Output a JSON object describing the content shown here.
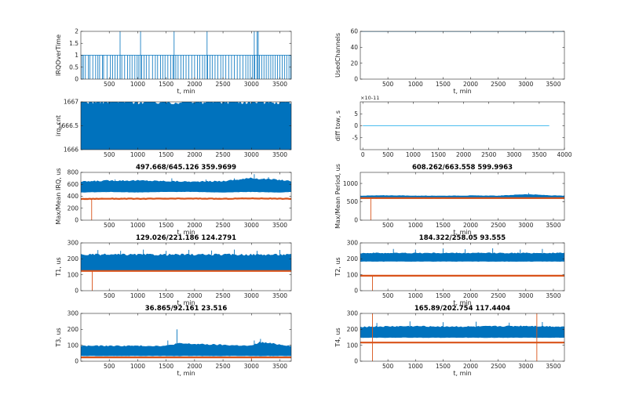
{
  "chart_data": [
    {
      "id": "irq-over-time",
      "type": "line",
      "title": "",
      "xlabel": "t, min",
      "ylabel": "IRQOverTime",
      "xlim": [
        0,
        3700
      ],
      "ylim": [
        0,
        2
      ],
      "xticks": [
        500,
        1000,
        1500,
        2000,
        2500,
        3000,
        3500
      ],
      "yticks": [
        0,
        0.5,
        1,
        1.5,
        2
      ],
      "yticklabels": [
        "0",
        "0.5",
        "1",
        "1.5",
        "2"
      ],
      "series": [
        {
          "name": "IRQOverTime",
          "color": "#0072bd",
          "render": "spikes",
          "base": 0,
          "level": 1,
          "high": 2,
          "spike_x": [
            20,
            45,
            80,
            130,
            160,
            210,
            260,
            300,
            330,
            380,
            400,
            460,
            520,
            560,
            600,
            640,
            690,
            720,
            770,
            820,
            860,
            900,
            950,
            990,
            1020,
            1070,
            1110,
            1150,
            1200,
            1260,
            1310,
            1350,
            1400,
            1440,
            1480,
            1530,
            1580,
            1620,
            1670,
            1710,
            1760,
            1800,
            1850,
            1900,
            1950,
            2000,
            2050,
            2090,
            2140,
            2180,
            2230,
            2270,
            2310,
            2360,
            2410,
            2460,
            2500,
            2550,
            2600,
            2650,
            2700,
            2750,
            2800,
            2850,
            2900,
            2940,
            2980,
            3020,
            3060,
            3100,
            3140,
            3180,
            3220,
            3260,
            3300,
            3340,
            3380,
            3420,
            3460,
            3500,
            3540,
            3580,
            3620,
            3660,
            3690
          ],
          "high_x": [
            690,
            1050,
            1640,
            2220,
            3050,
            3100,
            3120
          ]
        }
      ]
    },
    {
      "id": "used-channels",
      "type": "line",
      "title": "",
      "xlabel": "t, min",
      "ylabel": "UsedChannels",
      "xlim": [
        0,
        3700
      ],
      "ylim": [
        0,
        60
      ],
      "xticks": [
        500,
        1000,
        1500,
        2000,
        2500,
        3000,
        3500
      ],
      "yticks": [
        0,
        20,
        40,
        60
      ],
      "yticklabels": [
        "0",
        "20",
        "40",
        "60"
      ],
      "series": [
        {
          "name": "UsedChannels",
          "color": "#0072bd",
          "render": "line",
          "x": [
            0,
            3700
          ],
          "y": [
            60,
            60
          ]
        }
      ]
    },
    {
      "id": "irq-cnt",
      "type": "area",
      "title": "",
      "xlabel": "",
      "ylabel": "irq_cnt",
      "xlim": [
        0,
        3700
      ],
      "ylim": [
        1666,
        1667
      ],
      "xticks": [
        500,
        1000,
        1500,
        2000,
        2500,
        3000,
        3500
      ],
      "yticks": [
        1666,
        1666.5,
        1667
      ],
      "yticklabels": [
        "1666",
        "1666.5",
        "1667"
      ],
      "series": [
        {
          "name": "irq_cnt",
          "color": "#0072bd",
          "render": "band",
          "x": [
            0,
            3700
          ],
          "lower": 1666,
          "upper": 1667
        }
      ]
    },
    {
      "id": "diff-tow",
      "type": "line",
      "title": "",
      "xlabel": "",
      "ylabel": "diff tow, s",
      "exponent": "10^-11",
      "xlim": [
        -50,
        4000
      ],
      "ylim": [
        -1e-11,
        1e-11
      ],
      "xticks": [
        0,
        500,
        1000,
        1500,
        2000,
        2500,
        3000,
        3500,
        4000
      ],
      "yticks": [
        -5e-12,
        0,
        5e-12
      ],
      "yticklabels": [
        "-5",
        "0",
        "5"
      ],
      "series": [
        {
          "name": "diff tow",
          "color": "#4dbeee",
          "render": "line",
          "x": [
            0,
            3700
          ],
          "y": [
            0,
            0
          ]
        }
      ]
    },
    {
      "id": "irq-period",
      "type": "line",
      "title": "497.668/645.126  359.9699",
      "xlabel": "t, min",
      "ylabel": "Max/Mean IRQ, us",
      "xlim": [
        0,
        3700
      ],
      "ylim": [
        0,
        800
      ],
      "xticks": [
        500,
        1000,
        1500,
        2000,
        2500,
        3000,
        3500
      ],
      "yticks": [
        0,
        200,
        400,
        600,
        800
      ],
      "yticklabels": [
        "0",
        "200",
        "400",
        "600",
        "800"
      ],
      "series": [
        {
          "name": "Max",
          "color": "#0072bd",
          "render": "band",
          "x": [
            0,
            500,
            1000,
            1500,
            2000,
            2500,
            3000,
            3500,
            3700
          ],
          "lower": [
            470,
            480,
            470,
            480,
            480,
            470,
            480,
            470,
            480
          ],
          "upper": [
            640,
            660,
            660,
            650,
            640,
            650,
            700,
            670,
            650
          ],
          "spike_x": [
            250,
            600,
            1100,
            1600,
            2200,
            2700,
            3050,
            3300
          ],
          "spike_y": [
            660,
            680,
            670,
            700,
            680,
            700,
            770,
            720
          ]
        },
        {
          "name": "Mean",
          "color": "#d95319",
          "render": "line",
          "x": [
            0,
            500,
            1000,
            1500,
            2000,
            2500,
            3000,
            3500,
            3700
          ],
          "y": [
            355,
            360,
            358,
            360,
            362,
            358,
            365,
            360,
            358
          ],
          "dip_x": [
            190
          ],
          "dip_y": [
            0
          ]
        }
      ]
    },
    {
      "id": "max-mean-period",
      "type": "line",
      "title": "608.262/663.558  599.9963",
      "xlabel": "t, min",
      "ylabel": "Max/Mean Period, us",
      "xlim": [
        0,
        3700
      ],
      "ylim": [
        0,
        1300
      ],
      "xticks": [
        500,
        1000,
        1500,
        2000,
        2500,
        3000,
        3500
      ],
      "yticks": [
        0,
        500,
        1000
      ],
      "yticklabels": [
        "0",
        "500",
        "1000"
      ],
      "series": [
        {
          "name": "Max",
          "color": "#0072bd",
          "render": "band",
          "x": [
            0,
            500,
            1000,
            1500,
            2000,
            2500,
            3000,
            3500,
            3700
          ],
          "lower": [
            590,
            590,
            590,
            590,
            590,
            590,
            590,
            590,
            590
          ],
          "upper": [
            660,
            670,
            660,
            660,
            665,
            660,
            700,
            665,
            660
          ],
          "spike_x": [
            3050
          ],
          "spike_y": [
            740
          ]
        },
        {
          "name": "Mean",
          "color": "#d95319",
          "render": "line",
          "x": [
            0,
            3700
          ],
          "y": [
            600,
            600
          ],
          "dip_x": [
            190
          ],
          "dip_y": [
            0
          ]
        }
      ]
    },
    {
      "id": "t1",
      "type": "line",
      "title": "129.026/221.186  124.2791",
      "xlabel": "t, min",
      "ylabel": "T1, us",
      "xlim": [
        0,
        3700
      ],
      "ylim": [
        0,
        300
      ],
      "xticks": [
        500,
        1000,
        1500,
        2000,
        2500,
        3000,
        3500
      ],
      "yticks": [
        0,
        100,
        200,
        300
      ],
      "yticklabels": [
        "0",
        "100",
        "200",
        "300"
      ],
      "series": [
        {
          "name": "Max",
          "color": "#0072bd",
          "render": "band",
          "x": [
            0,
            3700
          ],
          "lower": [
            125,
            125
          ],
          "upper": [
            225,
            225
          ],
          "spike_x": [
            300,
            700,
            1100,
            1500,
            1900,
            2300,
            2700,
            3100,
            3500
          ],
          "spike_y": [
            255,
            250,
            258,
            250,
            256,
            252,
            258,
            250,
            256
          ]
        },
        {
          "name": "Mean",
          "color": "#d95319",
          "render": "line",
          "x": [
            0,
            3700
          ],
          "y": [
            124,
            124
          ],
          "dip_x": [
            200
          ],
          "dip_y": [
            0
          ]
        }
      ]
    },
    {
      "id": "t2",
      "type": "line",
      "title": "184.322/258.05  93.555",
      "xlabel": "t, min",
      "ylabel": "T2, us",
      "xlim": [
        0,
        3700
      ],
      "ylim": [
        0,
        300
      ],
      "xticks": [
        500,
        1000,
        1500,
        2000,
        2500,
        3000,
        3500
      ],
      "yticks": [
        0,
        100,
        200,
        300
      ],
      "yticklabels": [
        "0",
        "100",
        "200",
        "300"
      ],
      "series": [
        {
          "name": "Max",
          "color": "#0072bd",
          "render": "band",
          "x": [
            0,
            3700
          ],
          "lower": [
            185,
            185
          ],
          "upper": [
            235,
            235
          ],
          "spike_x": [
            600,
            1000,
            1500,
            1900,
            2400,
            2900,
            3300
          ],
          "spike_y": [
            262,
            258,
            265,
            260,
            266,
            258,
            262
          ]
        },
        {
          "name": "Mean",
          "color": "#d95319",
          "render": "line",
          "x": [
            0,
            3700
          ],
          "y": [
            94,
            94
          ],
          "dip_x": [
            220
          ],
          "dip_y": [
            0
          ]
        }
      ]
    },
    {
      "id": "t3",
      "type": "line",
      "title": "36.865/92.161  23.516",
      "xlabel": "t, min",
      "ylabel": "T3, us",
      "xlim": [
        0,
        3700
      ],
      "ylim": [
        0,
        300
      ],
      "xticks": [
        500,
        1000,
        1500,
        2000,
        2500,
        3000,
        3500
      ],
      "yticks": [
        0,
        100,
        200,
        300
      ],
      "yticklabels": [
        "0",
        "100",
        "200",
        "300"
      ],
      "series": [
        {
          "name": "Max",
          "color": "#0072bd",
          "render": "band",
          "x": [
            0,
            1500,
            1700,
            3000,
            3150,
            3700
          ],
          "lower": [
            35,
            35,
            35,
            35,
            35,
            35
          ],
          "upper": [
            95,
            95,
            110,
            95,
            118,
            95
          ],
          "spike_x": [
            1530,
            1690,
            3050,
            3160
          ],
          "spike_y": [
            130,
            200,
            130,
            140
          ]
        },
        {
          "name": "Mean",
          "color": "#d95319",
          "render": "line",
          "x": [
            0,
            3700
          ],
          "y": [
            24,
            24
          ],
          "dip_x": [
            3000
          ],
          "dip_y": [
            0
          ]
        }
      ]
    },
    {
      "id": "t4",
      "type": "line",
      "title": "165.89/202.754  117.4404",
      "xlabel": "t, min",
      "ylabel": "T4, us",
      "xlim": [
        0,
        3700
      ],
      "ylim": [
        0,
        300
      ],
      "xticks": [
        500,
        1000,
        1500,
        2000,
        2500,
        3000,
        3500
      ],
      "yticks": [
        0,
        100,
        200,
        300
      ],
      "yticklabels": [
        "0",
        "100",
        "200",
        "300"
      ],
      "series": [
        {
          "name": "Max",
          "color": "#0072bd",
          "render": "band",
          "x": [
            0,
            1000,
            2000,
            3000,
            3700
          ],
          "lower": [
            150,
            150,
            150,
            150,
            150
          ],
          "upper": [
            215,
            218,
            215,
            220,
            215
          ],
          "spike_x": [
            300,
            900,
            1500,
            2100,
            2700,
            3300
          ],
          "spike_y": [
            240,
            250,
            245,
            248,
            242,
            246
          ]
        },
        {
          "name": "Mean",
          "color": "#d95319",
          "render": "line",
          "x": [
            0,
            3700
          ],
          "y": [
            117,
            117
          ],
          "dip_x": [
            220,
            3200
          ],
          "dip_y": [
            0,
            0
          ],
          "up_x": [
            220,
            3200
          ],
          "up_y": [
            300,
            300
          ]
        }
      ]
    }
  ]
}
